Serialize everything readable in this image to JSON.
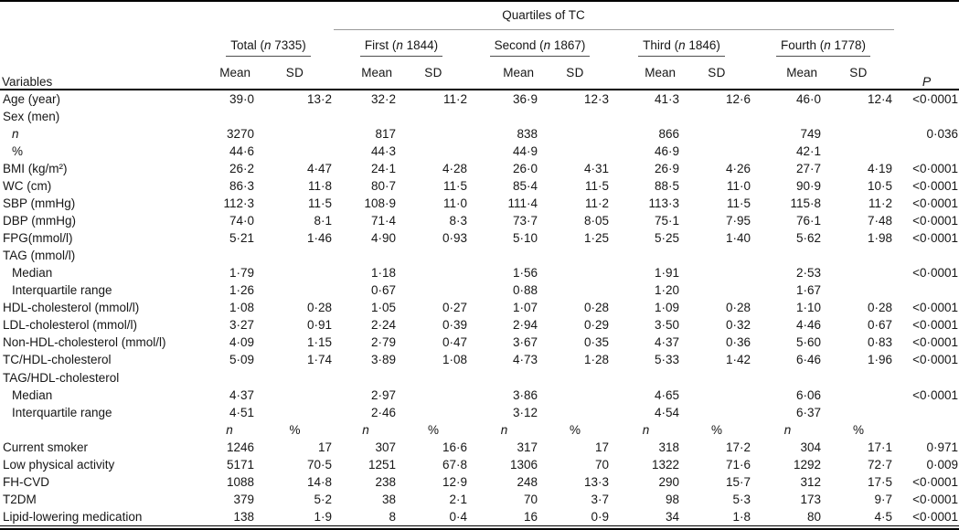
{
  "table": {
    "spanner": "Quartiles of TC",
    "variables_header": "Variables",
    "p_header": "P",
    "n_symbol": "n",
    "percent_symbol": "%",
    "groups": [
      {
        "prefix": "Total",
        "count": "7335",
        "mean_label": "Mean",
        "sd_label": "SD"
      },
      {
        "prefix": "First",
        "count": "1844",
        "mean_label": "Mean",
        "sd_label": "SD"
      },
      {
        "prefix": "Second",
        "count": "1867",
        "mean_label": "Mean",
        "sd_label": "SD"
      },
      {
        "prefix": "Third",
        "count": "1846",
        "mean_label": "Mean",
        "sd_label": "SD"
      },
      {
        "prefix": "Fourth",
        "count": "1778",
        "mean_label": "Mean",
        "sd_label": "SD"
      }
    ],
    "rows": [
      {
        "label": "Age (year)",
        "cells": [
          "39·0",
          "13·2",
          "32·2",
          "11·2",
          "36·9",
          "12·3",
          "41·3",
          "12·6",
          "46·0",
          "12·4"
        ],
        "p": "<0·0001"
      },
      {
        "label": "Sex (men)",
        "cells": [],
        "p": ""
      },
      {
        "label": "n",
        "italic": true,
        "indent": 1,
        "cells": [
          "3270",
          "",
          "817",
          "",
          "838",
          "",
          "866",
          "",
          "749",
          ""
        ],
        "p": "0·036"
      },
      {
        "label": "%",
        "indent": 1,
        "cells": [
          "44·6",
          "",
          "44·3",
          "",
          "44·9",
          "",
          "46·9",
          "",
          "42·1",
          ""
        ],
        "p": ""
      },
      {
        "label": "BMI (kg/m²)",
        "cells": [
          "26·2",
          "4·47",
          "24·1",
          "4·28",
          "26·0",
          "4·31",
          "26·9",
          "4·26",
          "27·7",
          "4·19"
        ],
        "p": "<0·0001"
      },
      {
        "label": "WC (cm)",
        "cells": [
          "86·3",
          "11·8",
          "80·7",
          "11·5",
          "85·4",
          "11·5",
          "88·5",
          "11·0",
          "90·9",
          "10·5"
        ],
        "p": "<0·0001"
      },
      {
        "label": "SBP (mmHg)",
        "cells": [
          "112·3",
          "11·5",
          "108·9",
          "11·0",
          "111·4",
          "11·2",
          "113·3",
          "11·5",
          "115·8",
          "11·2"
        ],
        "p": "<0·0001"
      },
      {
        "label": "DBP (mmHg)",
        "cells": [
          "74·0",
          "8·1",
          "71·4",
          "8·3",
          "73·7",
          "8·05",
          "75·1",
          "7·95",
          "76·1",
          "7·48"
        ],
        "p": "<0·0001"
      },
      {
        "label": "FPG(mmol/l)",
        "cells": [
          "5·21",
          "1·46",
          "4·90",
          "0·93",
          "5·10",
          "1·25",
          "5·25",
          "1·40",
          "5·62",
          "1·98"
        ],
        "p": "<0·0001"
      },
      {
        "label": "TAG (mmol/l)",
        "cells": [],
        "p": ""
      },
      {
        "label": "Median",
        "indent": 1,
        "cells": [
          "1·79",
          "",
          "1·18",
          "",
          "1·56",
          "",
          "1·91",
          "",
          "2·53",
          ""
        ],
        "p": "<0·0001"
      },
      {
        "label": "Interquartile range",
        "indent": 1,
        "cells": [
          "1·26",
          "",
          "0·67",
          "",
          "0·88",
          "",
          "1·20",
          "",
          "1·67",
          ""
        ],
        "p": ""
      },
      {
        "label": "HDL-cholesterol (mmol/l)",
        "cells": [
          "1·08",
          "0·28",
          "1·05",
          "0·27",
          "1·07",
          "0·28",
          "1·09",
          "0·28",
          "1·10",
          "0·28"
        ],
        "p": "<0·0001"
      },
      {
        "label": "LDL-cholesterol (mmol/l)",
        "cells": [
          "3·27",
          "0·91",
          "2·24",
          "0·39",
          "2·94",
          "0·29",
          "3·50",
          "0·32",
          "4·46",
          "0·67"
        ],
        "p": "<0·0001"
      },
      {
        "label": "Non-HDL-cholesterol (mmol/l)",
        "cells": [
          "4·09",
          "1·15",
          "2·79",
          "0·47",
          "3·67",
          "0·35",
          "4·37",
          "0·36",
          "5·60",
          "0·83"
        ],
        "p": "<0·0001"
      },
      {
        "label": "TC/HDL-cholesterol",
        "cells": [
          "5·09",
          "1·74",
          "3·89",
          "1·08",
          "4·73",
          "1·28",
          "5·33",
          "1·42",
          "6·46",
          "1·96"
        ],
        "p": "<0·0001"
      },
      {
        "label": "TAG/HDL-cholesterol",
        "cells": [],
        "p": ""
      },
      {
        "label": "Median",
        "indent": 1,
        "cells": [
          "4·37",
          "",
          "2·97",
          "",
          "3·86",
          "",
          "4·65",
          "",
          "6·06",
          ""
        ],
        "p": "<0·0001"
      },
      {
        "label": "Interquartile range",
        "indent": 1,
        "cells": [
          "4·51",
          "",
          "2·46",
          "",
          "3·12",
          "",
          "4·54",
          "",
          "6·37",
          ""
        ],
        "p": ""
      },
      {
        "type": "subheader",
        "cells": [
          "n",
          "%",
          "n",
          "%",
          "n",
          "%",
          "n",
          "%",
          "n",
          "%"
        ],
        "p": ""
      },
      {
        "label": "Current smoker",
        "cells": [
          "1246",
          "17",
          "307",
          "16·6",
          "317",
          "17",
          "318",
          "17·2",
          "304",
          "17·1"
        ],
        "p": "0·971"
      },
      {
        "label": "Low physical activity",
        "cells": [
          "5171",
          "70·5",
          "1251",
          "67·8",
          "1306",
          "70",
          "1322",
          "71·6",
          "1292",
          "72·7"
        ],
        "p": "0·009"
      },
      {
        "label": "FH-CVD",
        "cells": [
          "1088",
          "14·8",
          "238",
          "12·9",
          "248",
          "13·3",
          "290",
          "15·7",
          "312",
          "17·5"
        ],
        "p": "<0·0001"
      },
      {
        "label": "T2DM",
        "cells": [
          "379",
          "5·2",
          "38",
          "2·1",
          "70",
          "3·7",
          "98",
          "5·3",
          "173",
          "9·7"
        ],
        "p": "<0·0001"
      },
      {
        "label": "Lipid-lowering medication",
        "cells": [
          "138",
          "1·9",
          "8",
          "0·4",
          "16",
          "0·9",
          "34",
          "1·8",
          "80",
          "4·5"
        ],
        "p": "<0·0001"
      }
    ]
  }
}
